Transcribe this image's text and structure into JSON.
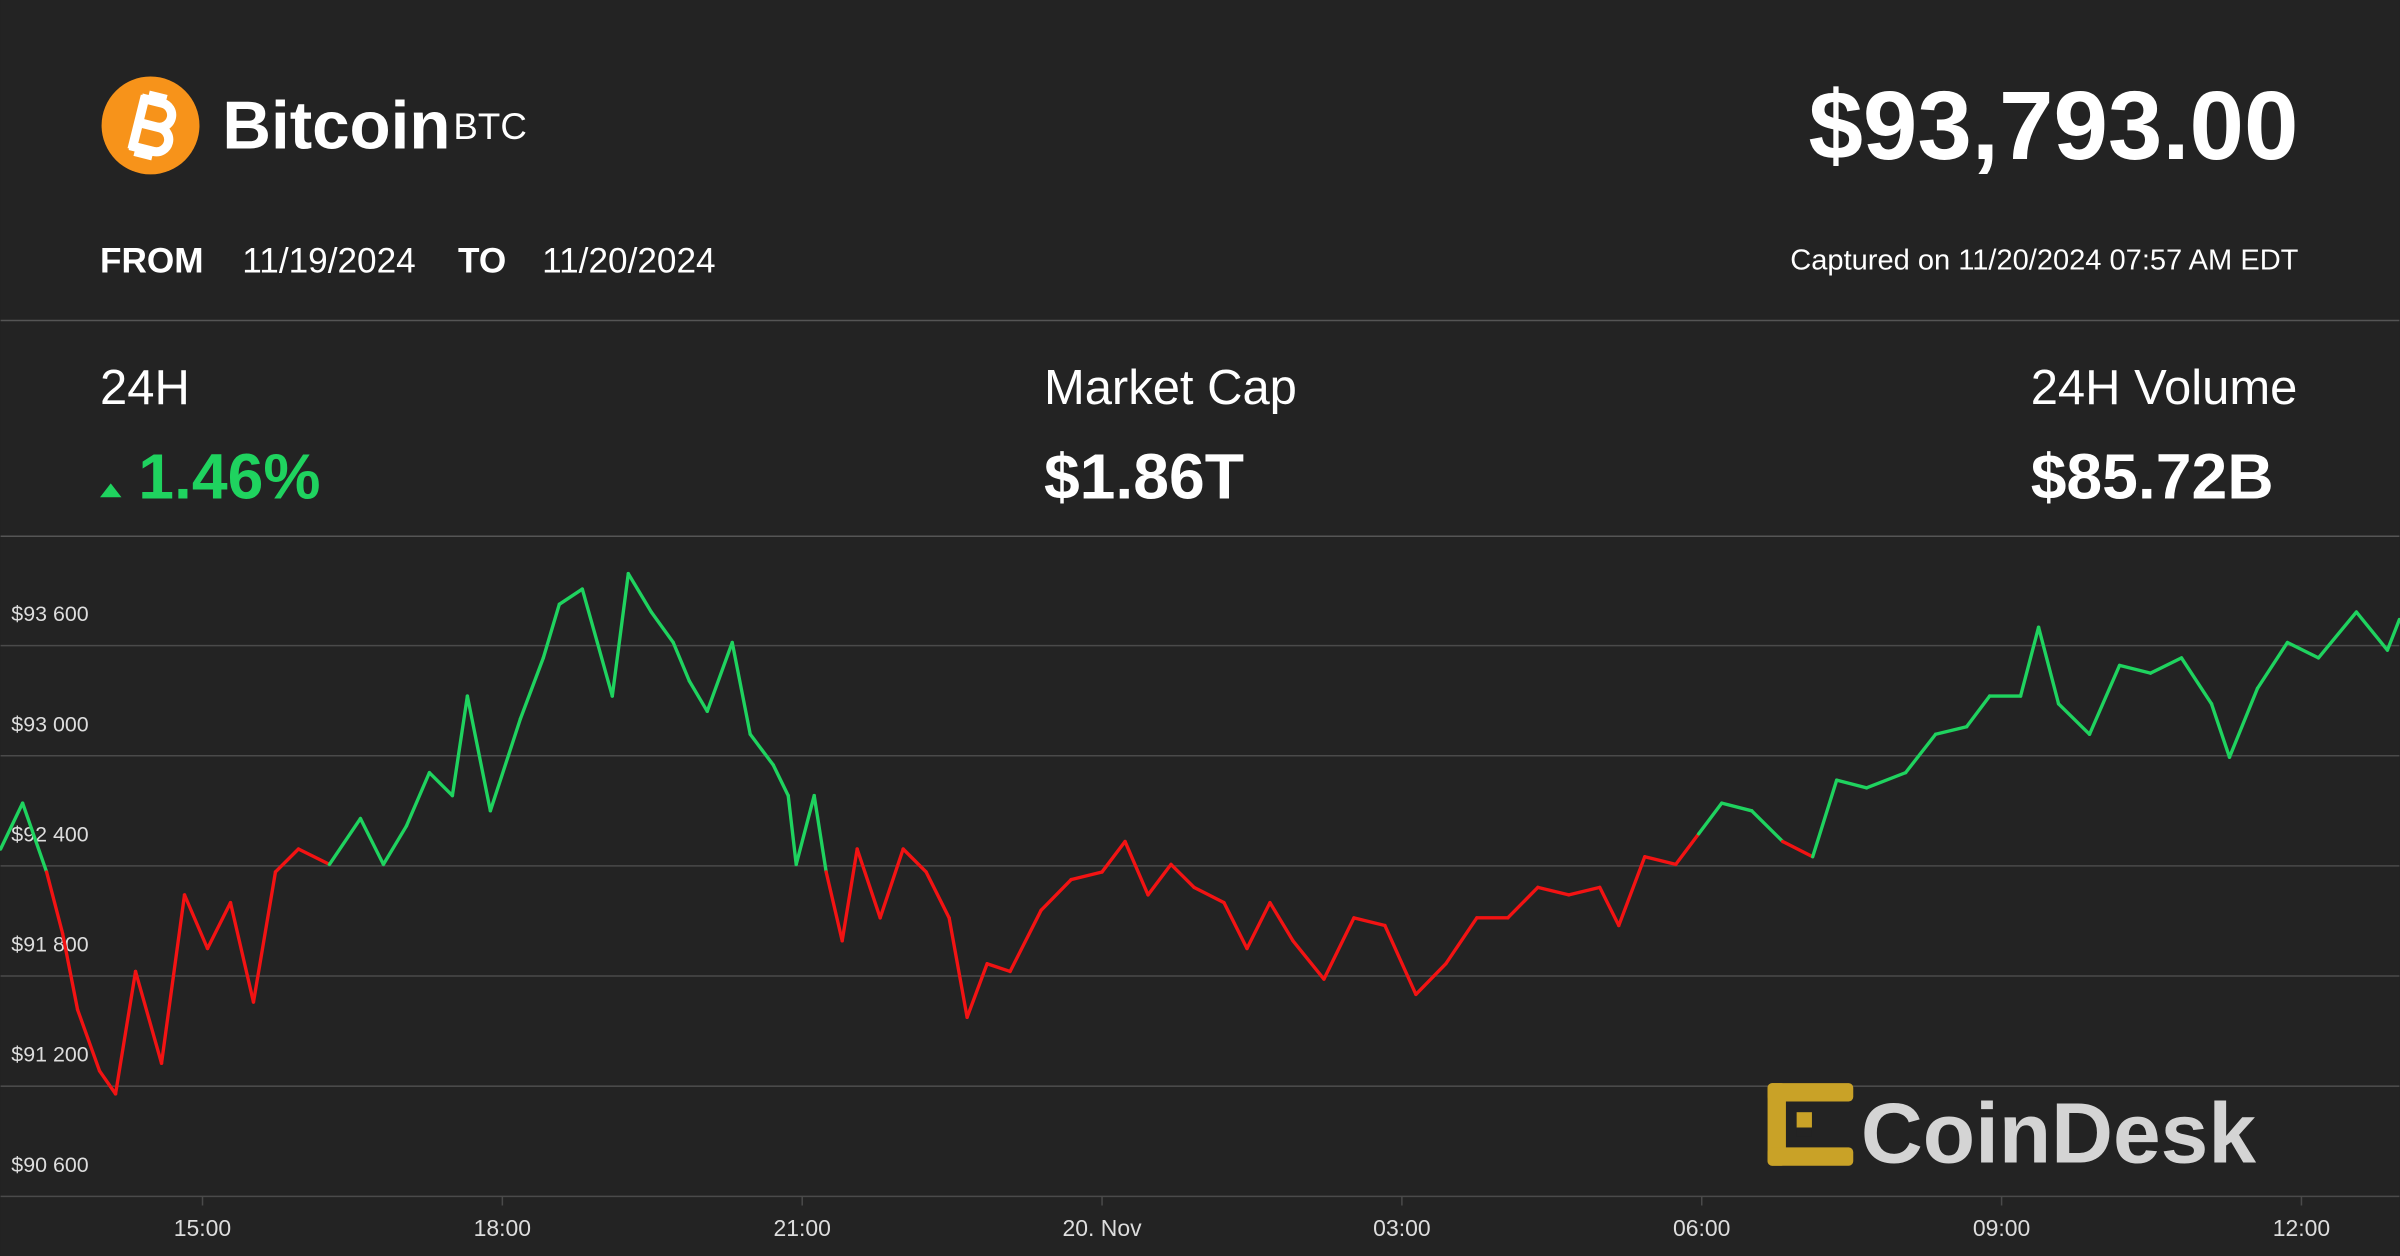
{
  "header": {
    "name": "Bitcoin",
    "symbol": "BTC",
    "price": "$93,793.00",
    "from_label": "FROM",
    "from": "11/19/2024",
    "to_label": "TO",
    "to": "11/20/2024",
    "captured": "Captured on 11/20/2024 07:57 AM EDT"
  },
  "stats": [
    {
      "label": "24H",
      "value": "1.46%"
    },
    {
      "label": "Market Cap",
      "value": "$1.86T"
    },
    {
      "label": "24H Volume",
      "value": "$85.72B"
    }
  ],
  "watermark": "CoinDesk",
  "chart_data": {
    "type": "line",
    "colors": {
      "up": "#1fd35f",
      "down": "#f21313"
    },
    "x": [
      12.98,
      13.2,
      13.44,
      13.6,
      13.75,
      13.97,
      14.13,
      14.33,
      14.59,
      14.82,
      15.05,
      15.28,
      15.51,
      15.73,
      15.96,
      16.27,
      16.58,
      16.81,
      17.04,
      17.27,
      17.5,
      17.65,
      17.88,
      18.18,
      18.41,
      18.57,
      18.8,
      18.95,
      19.1,
      19.26,
      19.49,
      19.71,
      19.87,
      20.05,
      20.3,
      20.48,
      20.71,
      20.86,
      20.94,
      21.12,
      21.24,
      21.4,
      21.55,
      21.78,
      22.01,
      22.24,
      22.47,
      22.65,
      22.85,
      23.08,
      23.39,
      23.69,
      24.0,
      24.23,
      24.46,
      24.69,
      24.92,
      25.22,
      25.45,
      25.68,
      25.91,
      26.22,
      26.52,
      26.83,
      27.14,
      27.44,
      27.75,
      28.06,
      28.36,
      28.67,
      28.98,
      29.17,
      29.43,
      29.74,
      29.97,
      30.2,
      30.5,
      30.81,
      31.11,
      31.35,
      31.65,
      32.04,
      32.34,
      32.65,
      32.88,
      33.19,
      33.37,
      33.57,
      33.88,
      34.18,
      34.49,
      34.8,
      35.1,
      35.28,
      35.56,
      35.86,
      36.17,
      36.55,
      36.86,
      36.98
    ],
    "values": [
      92492,
      92742,
      92367,
      92033,
      91617,
      91283,
      91158,
      91825,
      91325,
      92242,
      91950,
      92200,
      91658,
      92367,
      92492,
      92408,
      92658,
      92408,
      92617,
      92908,
      92783,
      93325,
      92700,
      93200,
      93533,
      93825,
      93908,
      93617,
      93325,
      93992,
      93783,
      93617,
      93408,
      93242,
      93617,
      93117,
      92950,
      92783,
      92408,
      92783,
      92367,
      91992,
      92492,
      92117,
      92492,
      92367,
      92117,
      91575,
      91867,
      91825,
      92158,
      92325,
      92367,
      92533,
      92242,
      92408,
      92283,
      92200,
      91950,
      92200,
      91992,
      91783,
      92117,
      92075,
      91700,
      91867,
      92117,
      92117,
      92283,
      92242,
      92283,
      92075,
      92450,
      92408,
      92575,
      92742,
      92700,
      92533,
      92450,
      92867,
      92825,
      92908,
      93117,
      93158,
      93325,
      93325,
      93700,
      93283,
      93117,
      93492,
      93450,
      93533,
      93283,
      92992,
      93367,
      93617,
      93533,
      93783,
      93575,
      93742
    ],
    "xlim": [
      12.98,
      36.98
    ],
    "xticks": [
      {
        "value": 15,
        "label": "15:00"
      },
      {
        "value": 18,
        "label": "18:00"
      },
      {
        "value": 21,
        "label": "21:00"
      },
      {
        "value": 24,
        "label": "20. Nov"
      },
      {
        "value": 27,
        "label": "03:00"
      },
      {
        "value": 30,
        "label": "06:00"
      },
      {
        "value": 33,
        "label": "09:00"
      },
      {
        "value": 36,
        "label": "12:00"
      }
    ],
    "ylim": [
      90600,
      94200
    ],
    "yticks": [
      {
        "value": 93600,
        "label": "$93 600"
      },
      {
        "value": 93000,
        "label": "$93 000"
      },
      {
        "value": 92400,
        "label": "$92 400"
      },
      {
        "value": 91800,
        "label": "$91 800"
      },
      {
        "value": 91200,
        "label": "$91 200"
      },
      {
        "value": 90600,
        "label": "$90 600"
      }
    ],
    "grid": true
  }
}
